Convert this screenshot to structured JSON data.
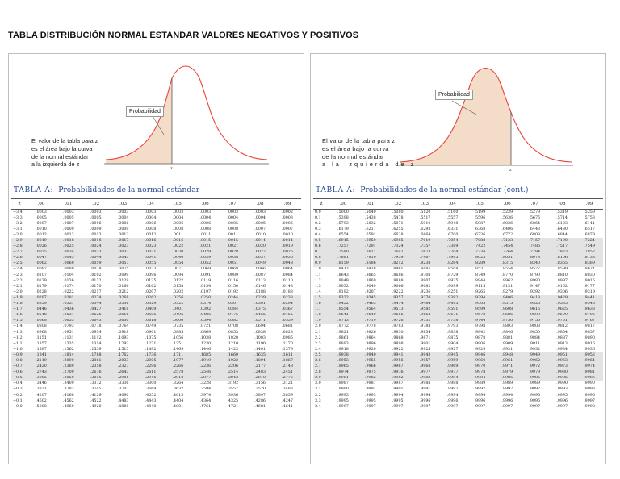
{
  "title": "TABLA DISTRIBUCIÓN NORMAL ESTANDAR VALORES NEGATIVOS Y POSITIVOS",
  "left": {
    "prob_label": "Probabilidad",
    "axis_label": "z",
    "desc": [
      "El valor de la tabla para z",
      "es el área bajo la curva",
      "de la normal estándar",
      "a la izquierda de z"
    ],
    "table_label": "TABLA A:",
    "table_title": "Probabilidades de la normal estándar",
    "columns": [
      "z",
      ".00",
      ".01",
      ".02",
      ".03",
      ".04",
      ".05",
      ".06",
      ".07",
      ".08",
      ".09"
    ],
    "rows": [
      [
        "−3.4",
        ".0003",
        ".0003",
        ".0003",
        ".0003",
        ".0003",
        ".0003",
        ".0003",
        ".0003",
        ".0003",
        ".0002"
      ],
      [
        "−3.3",
        ".0005",
        ".0005",
        ".0005",
        ".0004",
        ".0004",
        ".0004",
        ".0004",
        ".0004",
        ".0004",
        ".0003"
      ],
      [
        "−3.2",
        ".0007",
        ".0007",
        ".0006",
        ".0006",
        ".0006",
        ".0006",
        ".0006",
        ".0005",
        ".0005",
        ".0005"
      ],
      [
        "−3.1",
        ".0010",
        ".0009",
        ".0009",
        ".0009",
        ".0008",
        ".0008",
        ".0008",
        ".0008",
        ".0007",
        ".0007"
      ],
      [
        "−3.0",
        ".0013",
        ".0013",
        ".0013",
        ".0012",
        ".0012",
        ".0011",
        ".0011",
        ".0011",
        ".0010",
        ".0010"
      ],
      [
        "−2.9",
        ".0019",
        ".0018",
        ".0018",
        ".0017",
        ".0016",
        ".0016",
        ".0015",
        ".0015",
        ".0014",
        ".0014"
      ],
      [
        "−2.8",
        ".0026",
        ".0025",
        ".0024",
        ".0023",
        ".0023",
        ".0022",
        ".0021",
        ".0021",
        ".0020",
        ".0019"
      ],
      [
        "−2.7",
        ".0035",
        ".0034",
        ".0033",
        ".0032",
        ".0031",
        ".0030",
        ".0029",
        ".0028",
        ".0027",
        ".0026"
      ],
      [
        "−2.6",
        ".0047",
        ".0045",
        ".0044",
        ".0043",
        ".0041",
        ".0040",
        ".0039",
        ".0038",
        ".0037",
        ".0036"
      ],
      [
        "−2.5",
        ".0062",
        ".0060",
        ".0059",
        ".0057",
        ".0055",
        ".0054",
        ".0052",
        ".0051",
        ".0049",
        ".0048"
      ],
      [
        "−2.4",
        ".0082",
        ".0080",
        ".0078",
        ".0075",
        ".0073",
        ".0071",
        ".0069",
        ".0068",
        ".0066",
        ".0064"
      ],
      [
        "−2.3",
        ".0107",
        ".0104",
        ".0102",
        ".0099",
        ".0096",
        ".0094",
        ".0091",
        ".0089",
        ".0087",
        ".0084"
      ],
      [
        "−2.2",
        ".0139",
        ".0136",
        ".0132",
        ".0129",
        ".0125",
        ".0122",
        ".0119",
        ".0116",
        ".0113",
        ".0110"
      ],
      [
        "−2.1",
        ".0179",
        ".0174",
        ".0170",
        ".0166",
        ".0162",
        ".0158",
        ".0154",
        ".0150",
        ".0146",
        ".0143"
      ],
      [
        "−2.0",
        ".0228",
        ".0222",
        ".0217",
        ".0212",
        ".0207",
        ".0202",
        ".0197",
        ".0192",
        ".0188",
        ".0183"
      ],
      [
        "−1.9",
        ".0287",
        ".0281",
        ".0274",
        ".0268",
        ".0262",
        ".0256",
        ".0250",
        ".0244",
        ".0239",
        ".0233"
      ],
      [
        "−1.8",
        ".0359",
        ".0351",
        ".0344",
        ".0336",
        ".0329",
        ".0322",
        ".0314",
        ".0307",
        ".0301",
        ".0294"
      ],
      [
        "−1.7",
        ".0446",
        ".0436",
        ".0427",
        ".0418",
        ".0409",
        ".0401",
        ".0392",
        ".0384",
        ".0375",
        ".0367"
      ],
      [
        "−1.6",
        ".0548",
        ".0537",
        ".0526",
        ".0516",
        ".0505",
        ".0495",
        ".0485",
        ".0475",
        ".0465",
        ".0455"
      ],
      [
        "−1.5",
        ".0668",
        ".0655",
        ".0643",
        ".0630",
        ".0618",
        ".0606",
        ".0594",
        ".0582",
        ".0571",
        ".0559"
      ],
      [
        "−1.4",
        ".0808",
        ".0793",
        ".0778",
        ".0764",
        ".0749",
        ".0735",
        ".0721",
        ".0708",
        ".0694",
        ".0681"
      ],
      [
        "−1.3",
        ".0968",
        ".0951",
        ".0934",
        ".0918",
        ".0901",
        ".0885",
        ".0869",
        ".0853",
        ".0838",
        ".0823"
      ],
      [
        "−1.2",
        ".1151",
        ".1131",
        ".1112",
        ".1093",
        ".1075",
        ".1056",
        ".1038",
        ".1020",
        ".1003",
        ".0985"
      ],
      [
        "−1.1",
        ".1357",
        ".1335",
        ".1314",
        ".1292",
        ".1271",
        ".1251",
        ".1230",
        ".1210",
        ".1190",
        ".1170"
      ],
      [
        "−1.0",
        ".1587",
        ".1562",
        ".1539",
        ".1515",
        ".1492",
        ".1469",
        ".1446",
        ".1423",
        ".1401",
        ".1379"
      ],
      [
        "−0.9",
        ".1841",
        ".1814",
        ".1788",
        ".1762",
        ".1736",
        ".1711",
        ".1685",
        ".1660",
        ".1635",
        ".1611"
      ],
      [
        "−0.8",
        ".2119",
        ".2090",
        ".2061",
        ".2033",
        ".2005",
        ".1977",
        ".1949",
        ".1922",
        ".1894",
        ".1867"
      ],
      [
        "−0.7",
        ".2420",
        ".2389",
        ".2358",
        ".2327",
        ".2296",
        ".2266",
        ".2236",
        ".2206",
        ".2177",
        ".2148"
      ],
      [
        "−0.6",
        ".2743",
        ".2709",
        ".2676",
        ".2643",
        ".2611",
        ".2578",
        ".2546",
        ".2514",
        ".2483",
        ".2451"
      ],
      [
        "−0.5",
        ".3085",
        ".3050",
        ".3015",
        ".2981",
        ".2946",
        ".2912",
        ".2877",
        ".2843",
        ".2810",
        ".2776"
      ],
      [
        "−0.4",
        ".3446",
        ".3409",
        ".3372",
        ".3336",
        ".3300",
        ".3264",
        ".3228",
        ".3192",
        ".3156",
        ".3121"
      ],
      [
        "−0.3",
        ".3821",
        ".3783",
        ".3745",
        ".3707",
        ".3669",
        ".3632",
        ".3594",
        ".3557",
        ".3520",
        ".3483"
      ],
      [
        "−0.2",
        ".4207",
        ".4168",
        ".4129",
        ".4090",
        ".4052",
        ".4013",
        ".3974",
        ".3936",
        ".3897",
        ".3859"
      ],
      [
        "−0.1",
        ".4602",
        ".4562",
        ".4522",
        ".4483",
        ".4443",
        ".4404",
        ".4364",
        ".4325",
        ".4286",
        ".4247"
      ],
      [
        "−0.0",
        ".5000",
        ".4960",
        ".4920",
        ".4880",
        ".4840",
        ".4801",
        ".4761",
        ".4721",
        ".4681",
        ".4641"
      ]
    ]
  },
  "right": {
    "prob_label": "Probabilidad",
    "axis_label": "z",
    "desc": [
      "El valor de la tabla para z",
      "es el área bajo la curva",
      "de la normal estándar",
      "a la izquierda de z"
    ],
    "table_label": "TABLA A:",
    "table_title": "Probabilidades de la normal estándar (cont.)",
    "columns": [
      "z",
      ".00",
      ".01",
      ".02",
      ".03",
      ".04",
      ".05",
      ".06",
      ".07",
      ".08",
      ".09"
    ],
    "rows": [
      [
        "0.0",
        ".5000",
        ".5040",
        ".5080",
        ".5120",
        ".5160",
        ".5199",
        ".5239",
        ".5279",
        ".5319",
        ".5359"
      ],
      [
        "0.1",
        ".5398",
        ".5438",
        ".5478",
        ".5517",
        ".5557",
        ".5596",
        ".5636",
        ".5675",
        ".5714",
        ".5753"
      ],
      [
        "0.2",
        ".5793",
        ".5832",
        ".5871",
        ".5910",
        ".5948",
        ".5987",
        ".6026",
        ".6064",
        ".6103",
        ".6141"
      ],
      [
        "0.3",
        ".6179",
        ".6217",
        ".6255",
        ".6293",
        ".6331",
        ".6368",
        ".6406",
        ".6443",
        ".6480",
        ".6517"
      ],
      [
        "0.4",
        ".6554",
        ".6591",
        ".6628",
        ".6664",
        ".6700",
        ".6736",
        ".6772",
        ".6808",
        ".6844",
        ".6879"
      ],
      [
        "0.5",
        ".6915",
        ".6950",
        ".6985",
        ".7019",
        ".7054",
        ".7088",
        ".7123",
        ".7157",
        ".7190",
        ".7224"
      ],
      [
        "0.6",
        ".7257",
        ".7291",
        ".7324",
        ".7357",
        ".7389",
        ".7422",
        ".7454",
        ".7486",
        ".7517",
        ".7549"
      ],
      [
        "0.7",
        ".7580",
        ".7611",
        ".7642",
        ".7673",
        ".7704",
        ".7734",
        ".7764",
        ".7794",
        ".7823",
        ".7852"
      ],
      [
        "0.8",
        ".7881",
        ".7910",
        ".7939",
        ".7967",
        ".7995",
        ".8023",
        ".8051",
        ".8078",
        ".8106",
        ".8133"
      ],
      [
        "0.9",
        ".8159",
        ".8186",
        ".8212",
        ".8238",
        ".8264",
        ".8289",
        ".8315",
        ".8340",
        ".8365",
        ".8389"
      ],
      [
        "1.0",
        ".8413",
        ".8438",
        ".8461",
        ".8485",
        ".8508",
        ".8531",
        ".8554",
        ".8577",
        ".8599",
        ".8621"
      ],
      [
        "1.1",
        ".8643",
        ".8665",
        ".8686",
        ".8708",
        ".8729",
        ".8749",
        ".8770",
        ".8790",
        ".8810",
        ".8830"
      ],
      [
        "1.2",
        ".8849",
        ".8869",
        ".8888",
        ".8907",
        ".8925",
        ".8944",
        ".8962",
        ".8980",
        ".8997",
        ".9015"
      ],
      [
        "1.3",
        ".9032",
        ".9049",
        ".9066",
        ".9082",
        ".9099",
        ".9115",
        ".9131",
        ".9147",
        ".9162",
        ".9177"
      ],
      [
        "1.4",
        ".9192",
        ".9207",
        ".9222",
        ".9236",
        ".9251",
        ".9265",
        ".9279",
        ".9292",
        ".9306",
        ".9319"
      ],
      [
        "1.5",
        ".9332",
        ".9345",
        ".9357",
        ".9370",
        ".9382",
        ".9394",
        ".9406",
        ".9418",
        ".9429",
        ".9441"
      ],
      [
        "1.6",
        ".9452",
        ".9463",
        ".9474",
        ".9484",
        ".9495",
        ".9505",
        ".9515",
        ".9525",
        ".9535",
        ".9545"
      ],
      [
        "1.7",
        ".9554",
        ".9564",
        ".9573",
        ".9582",
        ".9591",
        ".9599",
        ".9608",
        ".9616",
        ".9625",
        ".9633"
      ],
      [
        "1.8",
        ".9641",
        ".9649",
        ".9656",
        ".9664",
        ".9671",
        ".9678",
        ".9686",
        ".9693",
        ".9699",
        ".9706"
      ],
      [
        "1.9",
        ".9713",
        ".9719",
        ".9726",
        ".9732",
        ".9738",
        ".9744",
        ".9750",
        ".9756",
        ".9761",
        ".9767"
      ],
      [
        "2.0",
        ".9772",
        ".9778",
        ".9783",
        ".9788",
        ".9793",
        ".9798",
        ".9803",
        ".9808",
        ".9812",
        ".9817"
      ],
      [
        "2.1",
        ".9821",
        ".9826",
        ".9830",
        ".9834",
        ".9838",
        ".9842",
        ".9846",
        ".9850",
        ".9854",
        ".9857"
      ],
      [
        "2.2",
        ".9861",
        ".9864",
        ".9868",
        ".9871",
        ".9875",
        ".9878",
        ".9881",
        ".9884",
        ".9887",
        ".9890"
      ],
      [
        "2.3",
        ".9893",
        ".9896",
        ".9898",
        ".9901",
        ".9904",
        ".9906",
        ".9909",
        ".9911",
        ".9913",
        ".9916"
      ],
      [
        "2.4",
        ".9918",
        ".9920",
        ".9922",
        ".9925",
        ".9927",
        ".9929",
        ".9931",
        ".9932",
        ".9934",
        ".9936"
      ],
      [
        "2.5",
        ".9938",
        ".9940",
        ".9941",
        ".9943",
        ".9945",
        ".9946",
        ".9948",
        ".9949",
        ".9951",
        ".9952"
      ],
      [
        "2.6",
        ".9953",
        ".9955",
        ".9956",
        ".9957",
        ".9959",
        ".9960",
        ".9961",
        ".9962",
        ".9963",
        ".9964"
      ],
      [
        "2.7",
        ".9965",
        ".9966",
        ".9967",
        ".9968",
        ".9969",
        ".9970",
        ".9971",
        ".9972",
        ".9973",
        ".9974"
      ],
      [
        "2.8",
        ".9974",
        ".9975",
        ".9976",
        ".9977",
        ".9977",
        ".9978",
        ".9979",
        ".9979",
        ".9980",
        ".9981"
      ],
      [
        "2.9",
        ".9981",
        ".9982",
        ".9982",
        ".9983",
        ".9984",
        ".9984",
        ".9985",
        ".9985",
        ".9986",
        ".9986"
      ],
      [
        "3.0",
        ".9987",
        ".9987",
        ".9987",
        ".9988",
        ".9988",
        ".9989",
        ".9989",
        ".9989",
        ".9990",
        ".9990"
      ],
      [
        "3.1",
        ".9990",
        ".9991",
        ".9991",
        ".9991",
        ".9992",
        ".9992",
        ".9992",
        ".9992",
        ".9993",
        ".9993"
      ],
      [
        "3.2",
        ".9993",
        ".9993",
        ".9994",
        ".9994",
        ".9994",
        ".9994",
        ".9994",
        ".9995",
        ".9995",
        ".9995"
      ],
      [
        "3.3",
        ".9995",
        ".9995",
        ".9995",
        ".9996",
        ".9996",
        ".9996",
        ".9996",
        ".9996",
        ".9996",
        ".9997"
      ],
      [
        "3.4",
        ".9997",
        ".9997",
        ".9997",
        ".9997",
        ".9997",
        ".9997",
        ".9997",
        ".9997",
        ".9997",
        ".9998"
      ]
    ]
  },
  "colors": {
    "curve": "#e8423c",
    "shade": "#f3dcc8",
    "title_blue": "#2a4a92",
    "row_shade": "#e3e3e3"
  }
}
